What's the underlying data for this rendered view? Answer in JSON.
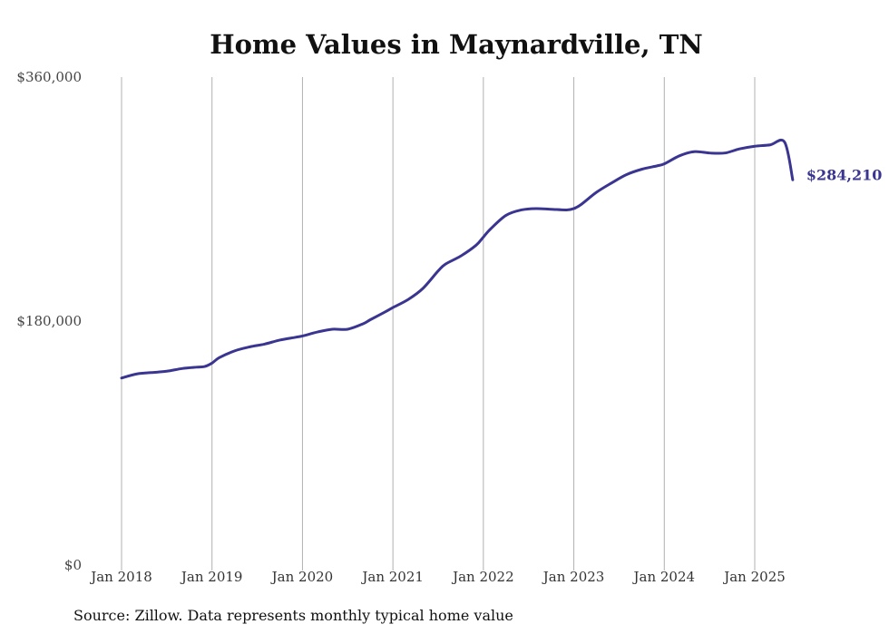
{
  "chart_data": {
    "type": "line",
    "title": "Home Values in Maynardville, TN",
    "xlabel": "",
    "ylabel": "",
    "ylim": [
      0,
      360000
    ],
    "yticks": [
      {
        "value": 0,
        "label": "$0"
      },
      {
        "value": 180000,
        "label": "$180,000"
      },
      {
        "value": 360000,
        "label": "$360,000"
      }
    ],
    "xticks": [
      {
        "value": 2018,
        "label": "Jan 2018"
      },
      {
        "value": 2019,
        "label": "Jan 2019"
      },
      {
        "value": 2020,
        "label": "Jan 2020"
      },
      {
        "value": 2021,
        "label": "Jan 2021"
      },
      {
        "value": 2022,
        "label": "Jan 2022"
      },
      {
        "value": 2023,
        "label": "Jan 2023"
      },
      {
        "value": 2024,
        "label": "Jan 2024"
      },
      {
        "value": 2025,
        "label": "Jan 2025"
      }
    ],
    "xlim": [
      2018,
      2025.42
    ],
    "grid": "vertical",
    "legend": "none",
    "line_color": "#3a3590",
    "grid_color": "#b0b0b0",
    "end_label": "$284,210",
    "series": [
      {
        "x": [
          2018.0,
          2018.17,
          2018.33,
          2018.5,
          2018.67,
          2018.83,
          2018.92,
          2019.0,
          2019.08,
          2019.25,
          2019.42,
          2019.58,
          2019.75,
          2019.92,
          2020.0,
          2020.17,
          2020.33,
          2020.5,
          2020.67,
          2020.75,
          2020.92,
          2021.0,
          2021.17,
          2021.33,
          2021.5,
          2021.58,
          2021.75,
          2021.92,
          2022.0,
          2022.08,
          2022.25,
          2022.42,
          2022.58,
          2022.75,
          2022.92,
          2023.0,
          2023.08,
          2023.25,
          2023.42,
          2023.58,
          2023.75,
          2023.92,
          2024.0,
          2024.17,
          2024.33,
          2024.5,
          2024.67,
          2024.83,
          2025.0,
          2025.17,
          2025.33,
          2025.42
        ],
        "y": [
          138000,
          141000,
          142000,
          143000,
          145000,
          146000,
          146500,
          149000,
          153000,
          158000,
          161000,
          163000,
          166000,
          168000,
          169000,
          172000,
          174000,
          174000,
          178000,
          181000,
          187000,
          190000,
          196000,
          204000,
          217000,
          222000,
          228000,
          236000,
          242000,
          248000,
          258000,
          262000,
          263000,
          262500,
          262000,
          263000,
          266000,
          275000,
          282000,
          288000,
          292000,
          294500,
          296000,
          302000,
          305000,
          304000,
          304000,
          307000,
          309000,
          310000,
          312000,
          284210
        ]
      }
    ]
  },
  "source": "Source: Zillow. Data represents monthly typical home value"
}
